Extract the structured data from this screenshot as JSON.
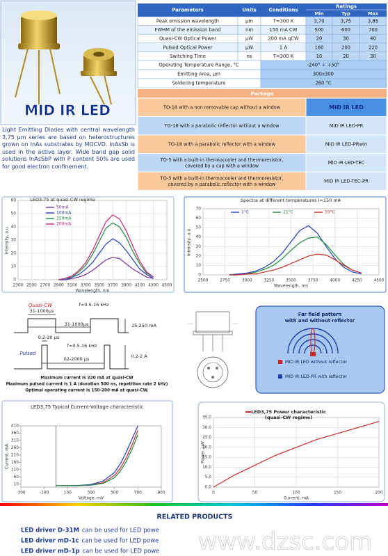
{
  "product_image": {
    "label": "MID IR LED"
  },
  "description": "Light Emitting Diodes with central wavelength 3,75 μm series are based on heterostructures grown on InAs substrates by MOCVD. InAsSb is used in the active layer. Wide band gap solid solutions InAsSbP with P content 50% are used for good electron confinement.",
  "spec_table": {
    "headers": [
      "Parameters",
      "Units",
      "Conditions",
      "Ratings"
    ],
    "subheaders": [
      "Min",
      "Typ",
      "Max"
    ],
    "rows": [
      [
        "Peak emission wavelength",
        "μm",
        "T=300 K",
        "3,70",
        "3,75",
        "3,85"
      ],
      [
        "FWHM of the emission band",
        "nm",
        "150 mA CW",
        "500",
        "600",
        "700"
      ],
      [
        "Quasi-CW Optical Power",
        "μW",
        "200 mA qCW",
        "20",
        "30",
        "40"
      ],
      [
        "Pulsed Optical Power",
        "μW",
        "1 A",
        "160",
        "200",
        "220"
      ],
      [
        "Switching Time",
        "ns",
        "T=300 K",
        "10",
        "20",
        "30"
      ]
    ],
    "merged_rows": [
      [
        "Operating Temperature Range, °C",
        "-240° ÷ +50°"
      ],
      [
        "Emitting Area, μm",
        "300x300"
      ],
      [
        "Soldering temperature",
        "260 °C"
      ]
    ]
  },
  "package_table": {
    "header": "Package",
    "rows": [
      [
        [
          "TO-18 with a non removable cap without a window"
        ],
        "MID IR LED"
      ],
      [
        [
          "TO-18 with a parabolic reflector without a window"
        ],
        "MID IR LED-PR"
      ],
      [
        [
          "TO-18 with a parabolic reflector with a window"
        ],
        "MID IR LED-PRwin"
      ],
      [
        [
          "TO-5 with a built-in thermocooler and thermoresistor,",
          "covered by a cap with a window"
        ],
        "MID IR LED-TEC"
      ],
      [
        [
          "TO-5 with a built-in thermocooler and thermoresistor,",
          "covered by a parabolic reflector with a window"
        ],
        "MID IR LED-TEC-PR"
      ]
    ]
  },
  "charts": [
    {
      "type": "line",
      "title": [
        "LED3,75 at quasi-CW regime"
      ],
      "x_label": "Wavelength, nm",
      "y_label": "Intensity, a.u.",
      "xlim": [
        2300,
        4500
      ],
      "ylim": [
        0,
        60
      ],
      "xticks": [
        2300,
        2500,
        2700,
        2900,
        3100,
        3300,
        3500,
        3700,
        3900,
        4100,
        4300,
        4500
      ],
      "yticks": [
        0,
        10,
        20,
        30,
        40,
        50,
        60
      ],
      "grid": true,
      "legend": "upper left",
      "x": [
        2900,
        3000,
        3100,
        3200,
        3300,
        3400,
        3500,
        3600,
        3700,
        3800,
        3900,
        4000,
        4100,
        4200,
        4300
      ],
      "series": [
        {
          "name": "50mA",
          "color": "#7a2a9a",
          "values": [
            0,
            0,
            1,
            2,
            4,
            7,
            11,
            15,
            17,
            16,
            12,
            8,
            5,
            2,
            1
          ]
        },
        {
          "name": "100mA",
          "color": "#1f3fbf",
          "values": [
            0,
            0,
            2,
            4,
            8,
            13,
            20,
            27,
            31,
            28,
            22,
            15,
            8,
            4,
            1
          ]
        },
        {
          "name": "150mA",
          "color": "#1a8a3a",
          "values": [
            0,
            1,
            2,
            6,
            11,
            19,
            29,
            39,
            43,
            40,
            32,
            21,
            12,
            5,
            2
          ]
        },
        {
          "name": "200mA",
          "color": "#d0207a",
          "values": [
            0,
            1,
            3,
            7,
            13,
            22,
            33,
            44,
            49,
            46,
            37,
            25,
            14,
            6,
            2
          ]
        }
      ]
    },
    {
      "type": "line",
      "title": [
        "Spectra at different temperatures I=150 mA"
      ],
      "x_label": "Wavelength, nm",
      "y_label": "Intensity, a.u.",
      "xlim": [
        2500,
        4500
      ],
      "ylim": [
        0,
        70
      ],
      "xticks": [
        2500,
        2750,
        3000,
        3250,
        3500,
        3750,
        4000,
        4250,
        4500
      ],
      "yticks": [
        0,
        10,
        20,
        30,
        40,
        50,
        60,
        70
      ],
      "grid": true,
      "legend": "top",
      "x": [
        2800,
        2900,
        3000,
        3100,
        3200,
        3300,
        3400,
        3500,
        3600,
        3700,
        3800,
        3900,
        4000,
        4100,
        4200,
        4300
      ],
      "series": [
        {
          "name": "1°C",
          "color": "#1f3fbf",
          "values": [
            0,
            1,
            2,
            4,
            8,
            14,
            23,
            35,
            47,
            52,
            44,
            30,
            17,
            8,
            3,
            1
          ]
        },
        {
          "name": "21°C",
          "color": "#1a8a3a",
          "values": [
            0,
            0,
            1,
            3,
            6,
            10,
            17,
            26,
            34,
            39,
            40,
            32,
            21,
            11,
            5,
            2
          ]
        },
        {
          "name": "55°C",
          "color": "#d02828",
          "values": [
            0,
            0,
            1,
            1,
            3,
            5,
            8,
            12,
            16,
            20,
            22,
            21,
            16,
            10,
            5,
            2
          ]
        }
      ]
    },
    {
      "type": "line",
      "title": [
        "LED3,75 Typical Current-Voltage characteristic"
      ],
      "x_label": "Voltage, mV",
      "y_label": "Current, mA",
      "xlim": [
        -300,
        900
      ],
      "ylim": [
        -10,
        410
      ],
      "xticks": [
        -300,
        -100,
        100,
        300,
        500,
        700,
        900
      ],
      "yticks": [
        10,
        60,
        110,
        160,
        210,
        260,
        310,
        360,
        410
      ],
      "grid": false,
      "legend": "none",
      "x": [
        0,
        100,
        200,
        300,
        400,
        500,
        550,
        600,
        650,
        700
      ],
      "series": [
        {
          "color": "#d02828",
          "values": [
            0,
            0,
            1,
            5,
            20,
            70,
            120,
            190,
            280,
            380
          ]
        },
        {
          "color": "#1f3fbf",
          "values": [
            0,
            0,
            2,
            8,
            30,
            90,
            150,
            230,
            320,
            410
          ]
        },
        {
          "color": "#1a8a3a",
          "values": [
            0,
            0,
            1,
            4,
            15,
            55,
            100,
            165,
            250,
            350
          ]
        }
      ]
    },
    {
      "type": "line",
      "title": [
        "LED3,75 Power characteristic",
        "(quasi-CW regime)"
      ],
      "x_label": "Current, mA",
      "y_label": "Power, μW",
      "xlim": [
        0,
        200
      ],
      "ylim": [
        0,
        35
      ],
      "xticks": [
        0,
        50,
        100,
        150,
        200
      ],
      "yticks": [
        {
          "value": 0,
          "label": "0.0"
        },
        {
          "value": 5,
          "label": "5.0"
        },
        {
          "value": 10,
          "label": "10.0"
        },
        {
          "value": 15,
          "label": "15.0"
        },
        {
          "value": 20,
          "label": "20.0"
        },
        {
          "value": 25,
          "label": "25.0"
        },
        {
          "value": 30,
          "label": "30.0"
        },
        {
          "value": 35,
          "label": "35.0"
        }
      ],
      "grid": true,
      "legend": "title",
      "x": [
        0,
        25,
        50,
        75,
        100,
        125,
        150,
        175,
        200
      ],
      "series": [
        {
          "color": "#d02828",
          "values": [
            0,
            6,
            11,
            16,
            20,
            24,
            27,
            30,
            33
          ]
        }
      ]
    }
  ],
  "pulse_diagram": {
    "quasi_cw": "Quasi-CW",
    "freq_qcw": "f=0.5-16 kHz",
    "period_qcw": "31-1000μs",
    "width_qcw": "31-1000μs",
    "current_qcw": "25-250 mA",
    "width_pulsed": "0.2-20 μs",
    "pulsed": "Pulsed",
    "freq_pulsed": "f=0.5-16 kHz",
    "period_pulsed": "02-2000 μs",
    "current_pulsed": "0.2-2 A"
  },
  "notes": [
    "Maximum current is 220 mA at quasi-CW",
    "Maximum pulsed current is 1 A (duration 500 ns, repetition rate 2 kHz)",
    "Optimal operating current is 150-200 mA at quasi-CW."
  ],
  "far_field": {
    "title": [
      "Far field pattern",
      "with and without reflector"
    ],
    "legend": [
      "MID IR LED without reflector",
      "MID IR LED-PR with reflector"
    ]
  },
  "related_products": {
    "title": "RELATED PRODUCTS",
    "items": [
      {
        "name": "LED driver D-31M",
        "text": "can be used for LED powe"
      },
      {
        "name": "LED driver mD-1c",
        "text": "can be used for LED powe"
      },
      {
        "name": "LED driver mD-1p",
        "text": "can be used for LED powe"
      }
    ]
  },
  "watermark": "www.dzsc.com"
}
